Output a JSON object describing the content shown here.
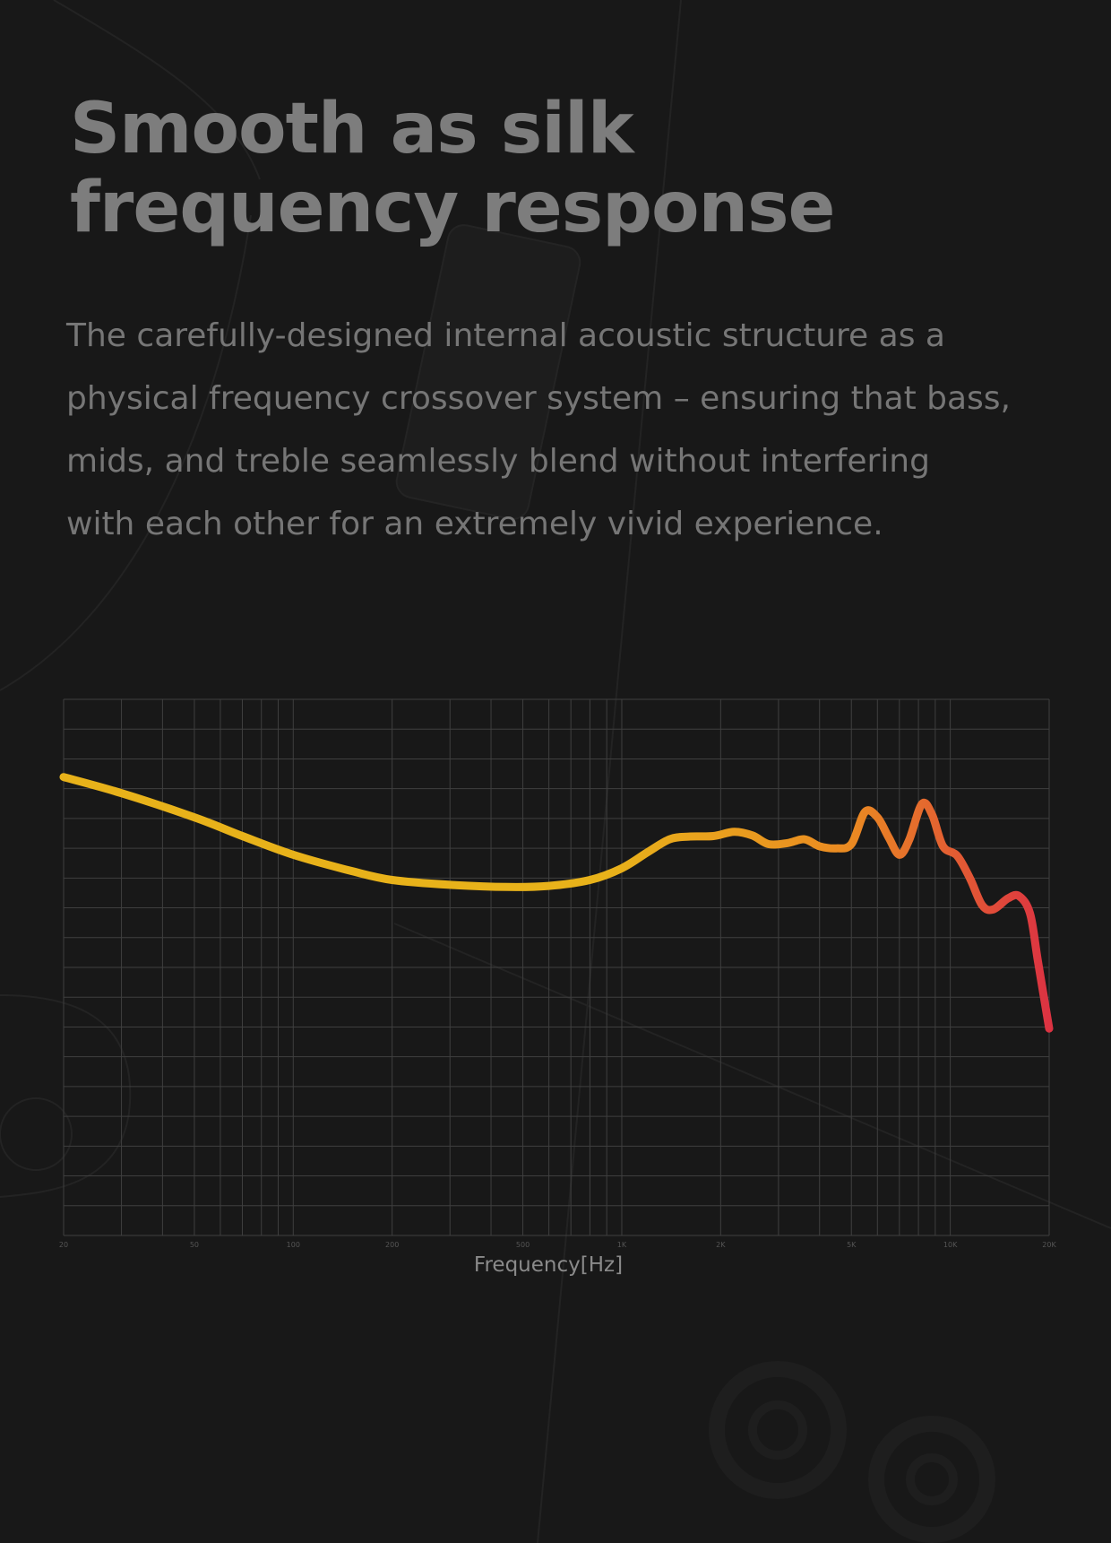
{
  "headline": {
    "line1": "Smooth as silk",
    "line2": "frequency response"
  },
  "body": {
    "line1": "The carefully-designed internal acoustic structure as a",
    "line2": "physical frequency crossover system – ensuring that bass,",
    "line3": "mids, and treble seamlessly blend without interfering",
    "line4": "with each other for an extremely vivid experience."
  },
  "colors": {
    "background": "#181818",
    "grid": "#3f3f3f",
    "curve_start": "#e8b21a",
    "curve_mid": "#ea8a22",
    "curve_end": "#dc3342"
  },
  "chart_data": {
    "type": "line",
    "xlabel": "Frequency[Hz]",
    "ylabel": "",
    "x_scale": "log",
    "xlim": [
      20,
      20000
    ],
    "ylim": [
      0,
      100
    ],
    "grid": true,
    "x_tick_labels": [
      {
        "value": 20,
        "label": "20"
      },
      {
        "value": 50,
        "label": "50"
      },
      {
        "value": 100,
        "label": "100"
      },
      {
        "value": 200,
        "label": "200"
      },
      {
        "value": 500,
        "label": "500"
      },
      {
        "value": 1000,
        "label": "1K"
      },
      {
        "value": 2000,
        "label": "2K"
      },
      {
        "value": 5000,
        "label": "5K"
      },
      {
        "value": 10000,
        "label": "10K"
      },
      {
        "value": 20000,
        "label": "20K"
      }
    ],
    "y_gridlines": 18,
    "series": [
      {
        "points": [
          [
            20,
            85.5
          ],
          [
            30,
            82.5
          ],
          [
            50,
            78.0
          ],
          [
            70,
            74.5
          ],
          [
            100,
            71.0
          ],
          [
            150,
            68.0
          ],
          [
            200,
            66.3
          ],
          [
            300,
            65.4
          ],
          [
            450,
            65.0
          ],
          [
            600,
            65.2
          ],
          [
            800,
            66.3
          ],
          [
            1000,
            68.5
          ],
          [
            1200,
            71.5
          ],
          [
            1400,
            73.9
          ],
          [
            1600,
            74.4
          ],
          [
            1900,
            74.5
          ],
          [
            2200,
            75.3
          ],
          [
            2500,
            74.6
          ],
          [
            2800,
            73.0
          ],
          [
            3200,
            73.2
          ],
          [
            3600,
            73.9
          ],
          [
            4000,
            72.6
          ],
          [
            4500,
            72.2
          ],
          [
            5000,
            73.0
          ],
          [
            5500,
            79.0
          ],
          [
            6000,
            78.0
          ],
          [
            6500,
            74.2
          ],
          [
            7000,
            71.0
          ],
          [
            7500,
            73.8
          ],
          [
            8200,
            80.5
          ],
          [
            8800,
            78.5
          ],
          [
            9500,
            72.6
          ],
          [
            10500,
            70.8
          ],
          [
            11500,
            66.5
          ],
          [
            12500,
            61.6
          ],
          [
            13500,
            60.8
          ],
          [
            15000,
            62.9
          ],
          [
            16200,
            63.3
          ],
          [
            17500,
            60.0
          ],
          [
            18500,
            51.0
          ],
          [
            20000,
            38.6
          ]
        ]
      }
    ]
  }
}
